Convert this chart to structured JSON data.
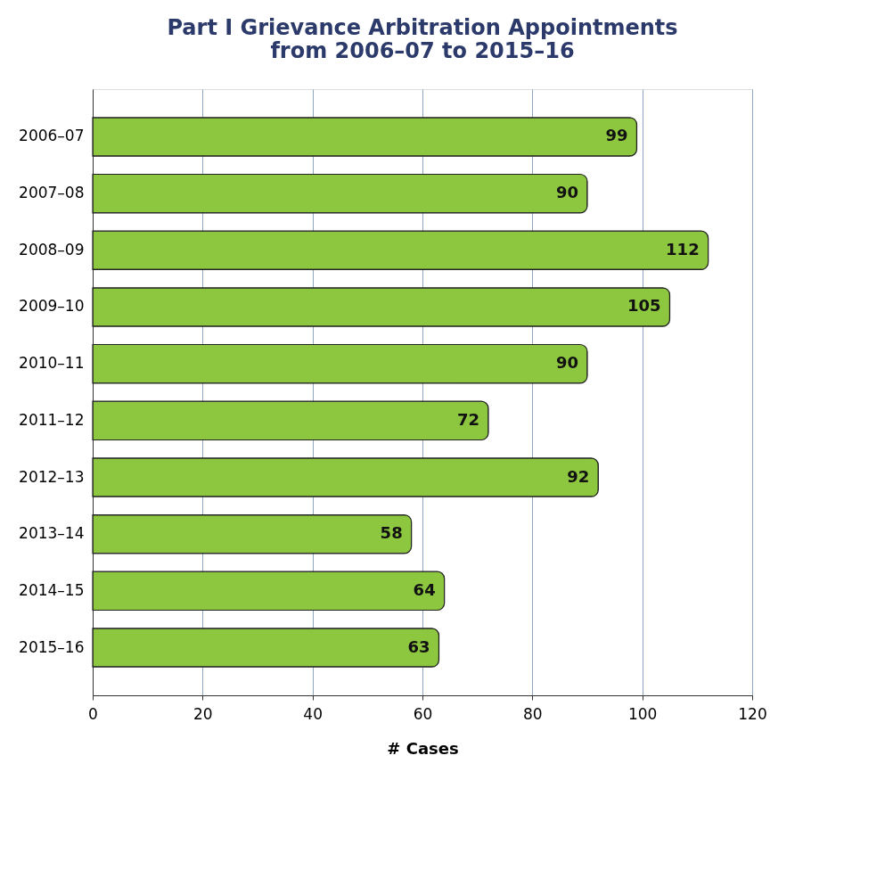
{
  "chart_data": {
    "type": "bar",
    "orientation": "horizontal",
    "title": [
      "Part I Grievance Arbitration Appointments",
      "from 2006–07 to 2015–16"
    ],
    "xlabel": "# Cases",
    "categories": [
      "2006–07",
      "2007–08",
      "2008–09",
      "2009–10",
      "2010–11",
      "2011–12",
      "2012–13",
      "2013–14",
      "2014–15",
      "2015–16"
    ],
    "values": [
      99,
      90,
      112,
      105,
      90,
      72,
      92,
      58,
      64,
      63
    ],
    "color": "#8dc63f",
    "xlim": [
      0,
      120
    ],
    "xticks": [
      0,
      20,
      40,
      60,
      80,
      100,
      120
    ],
    "grid": "x",
    "data_labels": true
  }
}
